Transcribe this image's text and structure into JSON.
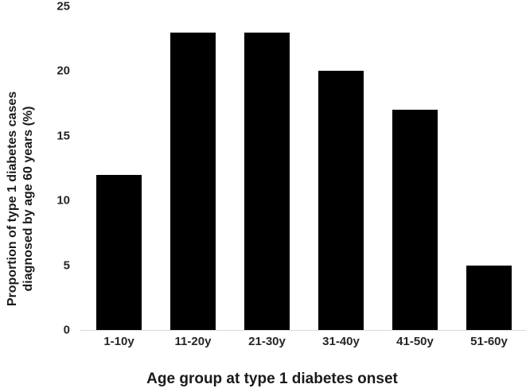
{
  "chart_data": {
    "type": "bar",
    "categories": [
      "1-10y",
      "11-20y",
      "21-30y",
      "31-40y",
      "41-50y",
      "51-60y"
    ],
    "values": [
      12,
      23,
      23,
      20,
      17,
      5
    ],
    "title": "",
    "xlabel": "Age group at type 1 diabetes onset",
    "ylabel": "Proportion of type 1 diabetes cases diagnosed by age 60 years (%)",
    "ylabel_lines": [
      "Proportion of type 1 diabetes cases",
      "diagnosed by age 60 years (%)"
    ],
    "yticks": [
      0,
      5,
      10,
      15,
      20,
      25
    ],
    "ylim": [
      0,
      25
    ],
    "grid": false,
    "legend": false,
    "bar_color": "#000000",
    "axis_line_color": "#d9d9d9",
    "text_color": "#262626",
    "title_color": "#1a1a1a",
    "background_color": "#ffffff"
  }
}
